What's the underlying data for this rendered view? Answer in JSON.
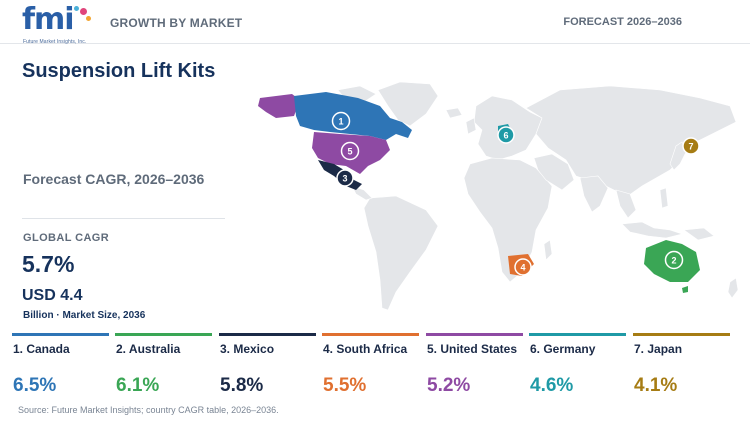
{
  "header": {
    "logo_text": "fmi",
    "logo_tagline": "Future Market Insights, Inc.",
    "left_label": "GROWTH BY MARKET",
    "right_label": "FORECAST 2026–2036"
  },
  "summary": {
    "title": "Suspension Lift Kits",
    "cagr_heading": "Forecast CAGR, 2026–2036",
    "global_label": "GLOBAL CAGR",
    "global_value": "5.7%",
    "market_size": "USD 4.4",
    "market_size_note": "Billion · Market Size, 2036"
  },
  "countries": [
    {
      "rank": "1",
      "label": "1. Canada",
      "cagr": "6.5%",
      "color": "#2e75b6"
    },
    {
      "rank": "2",
      "label": "2. Australia",
      "cagr": "6.1%",
      "color": "#3aa655"
    },
    {
      "rank": "3",
      "label": "3. Mexico",
      "cagr": "5.8%",
      "color": "#1b2a47"
    },
    {
      "rank": "4",
      "label": "4. South Africa",
      "cagr": "5.5%",
      "color": "#e07030"
    },
    {
      "rank": "5",
      "label": "5. United States",
      "cagr": "5.2%",
      "color": "#8e4aa3"
    },
    {
      "rank": "6",
      "label": "6. Germany",
      "cagr": "4.6%",
      "color": "#1f9aa6"
    },
    {
      "rank": "7",
      "label": "7. Japan",
      "cagr": "4.1%",
      "color": "#a67c14"
    }
  ],
  "map_colors": {
    "land": "#e4e6e9",
    "border": "#ffffff",
    "ocean": "#ffffff"
  },
  "source": "Source: Future Market Insights; country CAGR table, 2026–2036."
}
